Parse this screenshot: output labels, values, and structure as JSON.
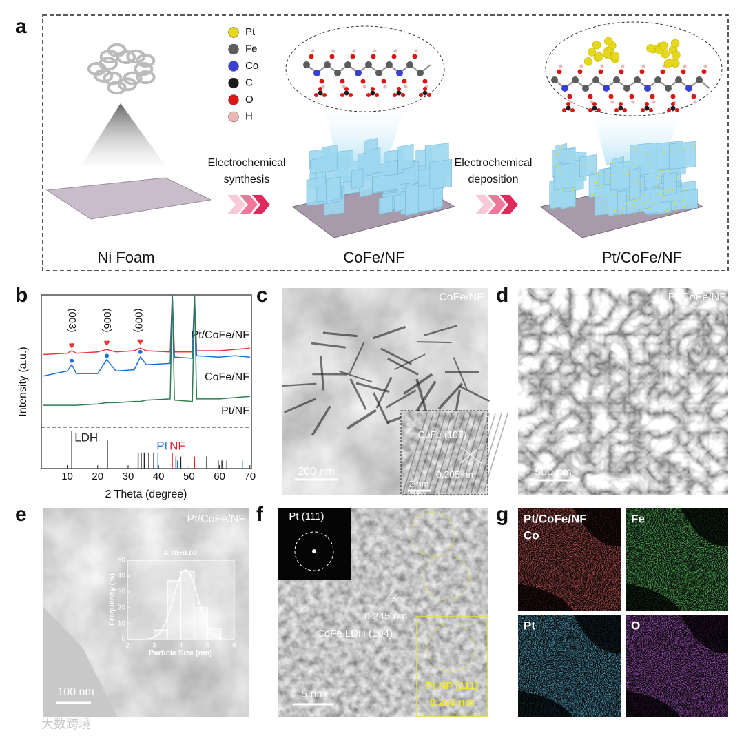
{
  "panels": {
    "a": {
      "label": "a",
      "atom_legend": [
        {
          "name": "Pt",
          "color": "#e6d81c"
        },
        {
          "name": "Fe",
          "color": "#5c5c5c"
        },
        {
          "name": "Co",
          "color": "#3a40d2"
        },
        {
          "name": "C",
          "color": "#1b1b1b"
        },
        {
          "name": "O",
          "color": "#dd1515"
        },
        {
          "name": "H",
          "color": "#e9b7b4"
        }
      ],
      "step_1": [
        "Electrochemical",
        "synthesis"
      ],
      "step_2": [
        "Electrochemical",
        "deposition"
      ],
      "materials": [
        "Ni Foam",
        "CoFe/NF",
        "Pt/CoFe/NF"
      ]
    },
    "b": {
      "label": "b"
    },
    "c": {
      "label": "c",
      "sample": "CoFe/NF",
      "scale_bar": "200 nm",
      "inset_plane": "CoFe (107)",
      "inset_spacing": "0.205 nm",
      "inset_scale_bar": "2 nm"
    },
    "d": {
      "label": "d",
      "sample": "Pt/CoFe/NF",
      "scale_bar": "500 nm"
    },
    "e": {
      "label": "e",
      "sample": "Pt/CoFe/NF",
      "scale_bar": "100 nm"
    },
    "f": {
      "label": "f",
      "fft_label": "Pt (111)",
      "spacing_1": "0.245 nm",
      "plane_1": "CoFe LDH (104)",
      "plane_2": "Pt NP (111)",
      "spacing_2": "0.226 nm",
      "scale_bar": "5 nm"
    },
    "g": {
      "label": "g",
      "maps": [
        {
          "lines": [
            "Pt/CoFe/NF",
            "Co"
          ],
          "color": "#e02222"
        },
        {
          "lines": [
            "Fe"
          ],
          "color": "#22c82a"
        },
        {
          "lines": [
            "Pt"
          ],
          "color": "#2294d6"
        },
        {
          "lines": [
            "O"
          ],
          "color": "#9a24d8"
        }
      ]
    }
  },
  "watermark": "大数跨境",
  "chart_data": [
    {
      "type": "line",
      "xlabel": "2 Theta (degree)",
      "ylabel": "Intensity (a.u.)",
      "xlim": [
        1.5,
        70.5
      ],
      "ylim": [
        0,
        100
      ],
      "xticks": [
        10,
        20,
        30,
        40,
        50,
        60,
        70
      ],
      "x": [
        2,
        10,
        11.5,
        13,
        20,
        23,
        26,
        32,
        34,
        36,
        43.8,
        44.5,
        45.2,
        51.1,
        51.8,
        52.5,
        60,
        65,
        70
      ],
      "series": [
        {
          "name": "Pt/CoFe/NF",
          "color": "#e8383d",
          "marker": "heart",
          "marker_values": [
            60,
            62,
            63
          ],
          "values": [
            53,
            54,
            56,
            54,
            55,
            57,
            55,
            56,
            58,
            56,
            55,
            100,
            55,
            55,
            100,
            56,
            56,
            57,
            58
          ]
        },
        {
          "name": "CoFe/NF",
          "color": "#1f6fd1",
          "marker": "circle",
          "marker_values": [
            48,
            52,
            55
          ],
          "values": [
            36,
            40,
            45,
            38,
            38,
            49,
            40,
            41,
            51,
            45,
            46,
            100,
            51,
            50,
            100,
            52,
            51,
            52,
            51
          ]
        },
        {
          "name": "Pt/NF",
          "color": "#2e7d52",
          "values": [
            13,
            13,
            13,
            13,
            14,
            15,
            15,
            16,
            16,
            17,
            18,
            100,
            17,
            16,
            100,
            18,
            18,
            19,
            20
          ]
        }
      ],
      "peak_x": [
        11.5,
        23,
        34
      ],
      "peak_labels": [
        "(003)",
        "(006)",
        "(009)"
      ],
      "references": [
        {
          "name": "LDH",
          "color": "#222222",
          "x": [
            11.5,
            23.2,
            33.3,
            34.3,
            35.3,
            36.8,
            38.4,
            45.7,
            47.3,
            55.8,
            59.6,
            60.8,
            62.4
          ],
          "values": [
            95,
            70,
            40,
            40,
            40,
            40,
            40,
            30,
            30,
            30,
            20,
            20,
            20
          ]
        },
        {
          "name": "Pt",
          "color": "#1f78d6",
          "x": [
            39.8,
            46.2,
            67.5
          ],
          "values": [
            40,
            20,
            20
          ]
        },
        {
          "name": "NF",
          "color": "#e0202a",
          "x": [
            44.5,
            51.8
          ],
          "values": [
            40,
            30
          ]
        }
      ]
    },
    {
      "type": "histogram",
      "title": "4.18±0.02",
      "xlabel": "Particle Size (nm)",
      "ylabel": "Frequency (%)",
      "bins": [
        3,
        3.5,
        4,
        4.5,
        5,
        5.5
      ],
      "values": [
        6,
        37,
        43,
        20,
        7
      ],
      "xlim": [
        2,
        6
      ],
      "ylim": [
        0,
        50
      ],
      "xticks": [
        2,
        3,
        4,
        5,
        6
      ],
      "yticks": [
        0,
        10,
        20,
        30,
        40,
        50
      ],
      "fit": {
        "mean": 4.18,
        "sd": 0.45,
        "peak": 44
      }
    }
  ]
}
